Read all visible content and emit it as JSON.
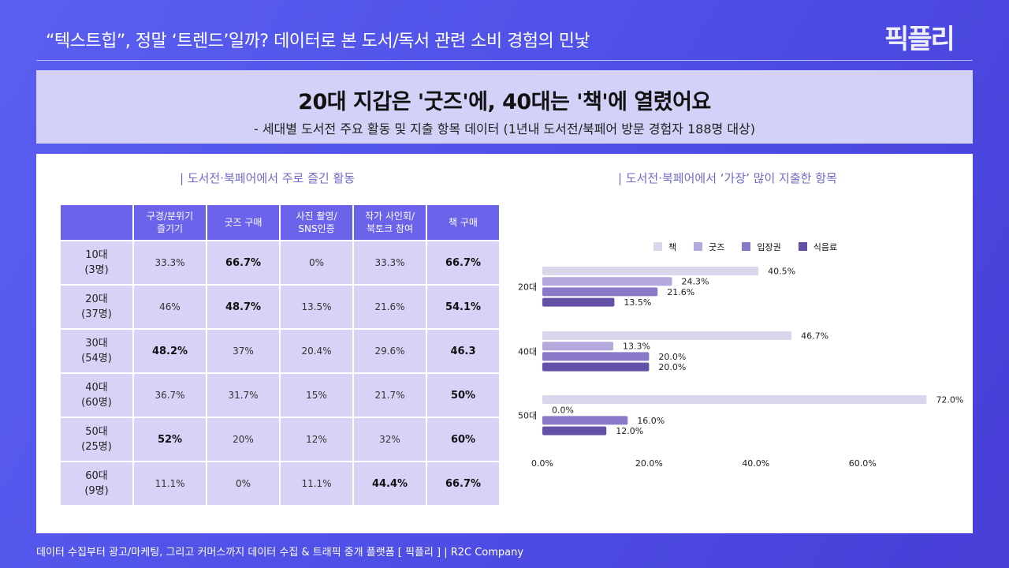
{
  "header": {
    "title": "“텍스트힙”, 정말 ‘트렌드’일까? 데이터로 본 도서/독서 관련 소비 경험의 민낯",
    "logo": "픽플리"
  },
  "banner": {
    "headline": "20대 지갑은 '굿즈'에, 40대는 '책'에 열렸어요",
    "subtitle": "- 세대별 도서전 주요 활동 및 지출 항목 데이터 (1년내 도서전/북페어 방문 경험자 188명 대상)"
  },
  "left": {
    "title": "| 도서전·북페어에서 주로 즐긴 활동",
    "columns": [
      "",
      "구경/분위기\n즐기기",
      "굿즈 구매",
      "사진 촬영/\nSNS인증",
      "작가 사인회/\n북토크 참여",
      "책 구매"
    ],
    "rows": [
      {
        "age": "10대",
        "n": "(3명)",
        "cells": [
          "33.3%",
          "66.7%",
          "0%",
          "33.3%",
          "66.7%"
        ],
        "bold": [
          1,
          4
        ]
      },
      {
        "age": "20대",
        "n": "(37명)",
        "cells": [
          "46%",
          "48.7%",
          "13.5%",
          "21.6%",
          "54.1%"
        ],
        "bold": [
          1,
          4
        ]
      },
      {
        "age": "30대",
        "n": "(54명)",
        "cells": [
          "48.2%",
          "37%",
          "20.4%",
          "29.6%",
          "46.3"
        ],
        "bold": [
          0,
          4
        ]
      },
      {
        "age": "40대",
        "n": "(60명)",
        "cells": [
          "36.7%",
          "31.7%",
          "15%",
          "21.7%",
          "50%"
        ],
        "bold": [
          4
        ]
      },
      {
        "age": "50대",
        "n": "(25명)",
        "cells": [
          "52%",
          "20%",
          "12%",
          "32%",
          "60%"
        ],
        "bold": [
          0,
          4
        ]
      },
      {
        "age": "60대",
        "n": "(9명)",
        "cells": [
          "11.1%",
          "0%",
          "11.1%",
          "44.4%",
          "66.7%"
        ],
        "bold": [
          3,
          4
        ]
      }
    ]
  },
  "right": {
    "title": "| 도서전·북페어에서 ‘가장’ 많이 지출한 항목"
  },
  "chart_data": {
    "type": "bar",
    "orientation": "horizontal",
    "categories": [
      "20대",
      "40대",
      "50대"
    ],
    "series": [
      {
        "name": "책",
        "values": [
          40.5,
          46.7,
          72.0
        ],
        "color": "#dcd6ec"
      },
      {
        "name": "굿즈",
        "values": [
          24.3,
          13.3,
          0.0
        ],
        "color": "#b4a8dc"
      },
      {
        "name": "입장권",
        "values": [
          21.6,
          20.0,
          16.0
        ],
        "color": "#8a78c8"
      },
      {
        "name": "식음료",
        "values": [
          13.5,
          20.0,
          12.0
        ],
        "color": "#6550a8"
      }
    ],
    "x_ticks": [
      "0.0%",
      "20.0%",
      "40.0%",
      "60.0%"
    ],
    "xlim": [
      0,
      75
    ],
    "legend": "top",
    "grid": false
  },
  "footer": "데이터 수집부터 광고/마케팅, 그리고 커머스까지 데이터 수집 & 트래픽 중개 플랫폼 [ 픽플리 ]  |  R2C Company"
}
